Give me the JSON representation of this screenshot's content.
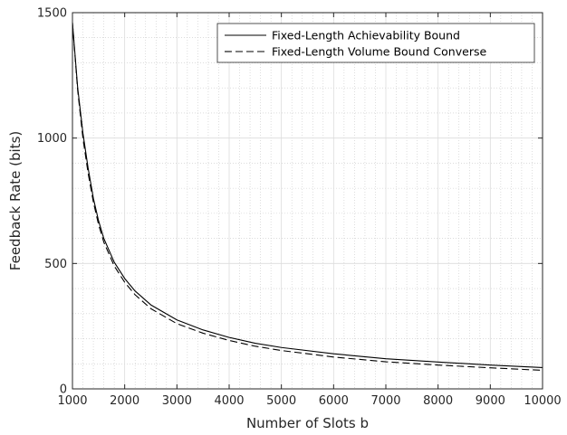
{
  "chart_data": {
    "type": "line",
    "title": "",
    "xlabel": "Number of Slots b",
    "ylabel": "Feedback Rate (bits)",
    "xlim": [
      1000,
      10000
    ],
    "ylim": [
      0,
      1500
    ],
    "xticks": [
      1000,
      2000,
      3000,
      4000,
      5000,
      6000,
      7000,
      8000,
      9000,
      10000
    ],
    "yticks": [
      0,
      500,
      1000,
      1500
    ],
    "grid": true,
    "minor_grid": true,
    "legend_position": "top-right",
    "series": [
      {
        "name": "Fixed-Length Achievability Bound",
        "style": "solid",
        "color": "#000000",
        "x": [
          1000,
          1100,
          1200,
          1300,
          1400,
          1500,
          1600,
          1800,
          2000,
          2200,
          2500,
          3000,
          3500,
          4000,
          4500,
          5000,
          6000,
          7000,
          8000,
          9000,
          10000
        ],
        "y": [
          1460,
          1200,
          1020,
          880,
          760,
          670,
          600,
          505,
          440,
          390,
          335,
          275,
          235,
          205,
          182,
          165,
          140,
          120,
          107,
          95,
          85
        ]
      },
      {
        "name": "Fixed-Length Volume Bound Converse",
        "style": "dashed",
        "color": "#000000",
        "x": [
          1000,
          1100,
          1200,
          1300,
          1400,
          1500,
          1600,
          1800,
          2000,
          2200,
          2500,
          3000,
          3500,
          4000,
          4500,
          5000,
          6000,
          7000,
          8000,
          9000,
          10000
        ],
        "y": [
          1460,
          1190,
          1000,
          860,
          745,
          655,
          585,
          490,
          425,
          375,
          320,
          260,
          222,
          193,
          170,
          153,
          127,
          108,
          95,
          84,
          74
        ]
      }
    ]
  }
}
